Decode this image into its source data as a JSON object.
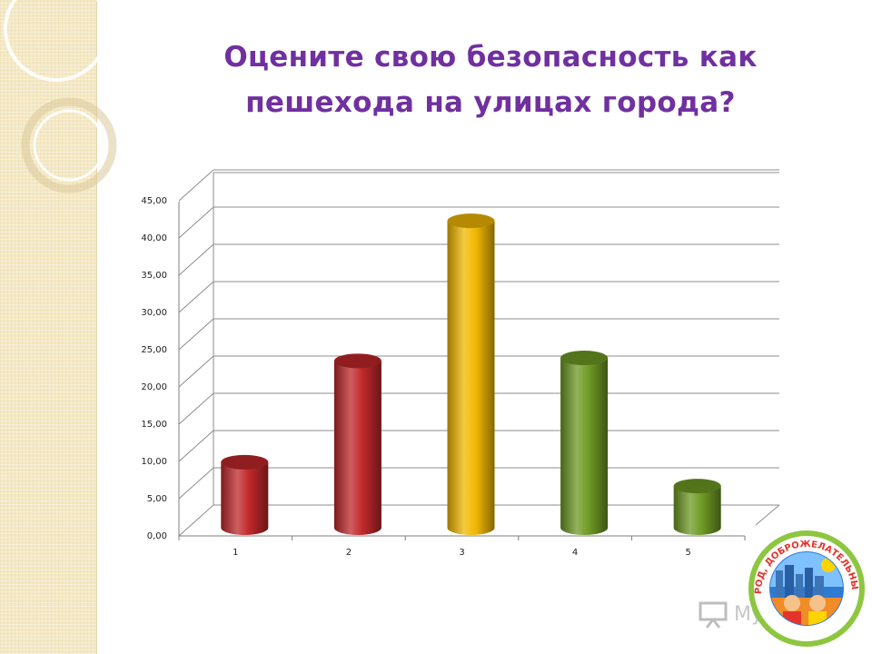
{
  "slide": {
    "title_line1": "Оцените свою безопасность  как",
    "title_line2": "пешехода  на улицах города?",
    "title_color": "#7030a0"
  },
  "chart_data": {
    "type": "bar",
    "style": "3d-cylinder",
    "categories": [
      "1",
      "2",
      "3",
      "4",
      "5"
    ],
    "values": [
      8.8,
      22.4,
      41.2,
      22.8,
      5.6
    ],
    "colors": [
      "#c0282b",
      "#c0282b",
      "#f2b800",
      "#6e9a24",
      "#6e9a24"
    ],
    "yticks": [
      "0,00",
      "5,00",
      "10,00",
      "15,00",
      "20,00",
      "25,00",
      "30,00",
      "35,00",
      "40,00",
      "45,00"
    ],
    "ylim": [
      0,
      50
    ],
    "grid": true,
    "legend": "none"
  },
  "branding": {
    "logo_text": "ПЕРМЬ-ГОРОД, ДОБРОЖЕЛАТЕЛЬНЫЙ К ДЕТЯМ",
    "watermark": "MyShared"
  }
}
